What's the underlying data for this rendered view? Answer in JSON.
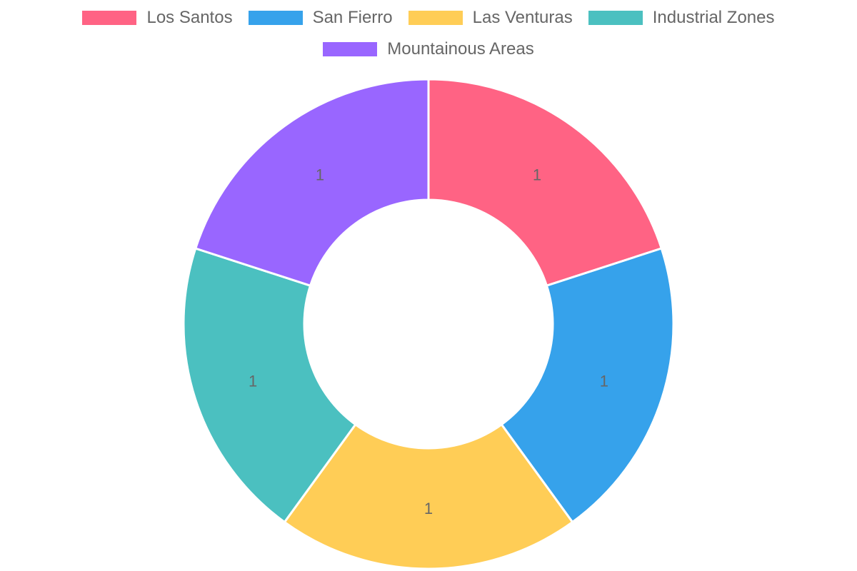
{
  "chart_data": {
    "type": "pie",
    "variant": "doughnut",
    "categories": [
      "Los Santos",
      "San Fierro",
      "Las Venturas",
      "Industrial Zones",
      "Mountainous Areas"
    ],
    "values": [
      1,
      1,
      1,
      1,
      1
    ],
    "data_labels": [
      "1",
      "1",
      "1",
      "1",
      "1"
    ],
    "colors": [
      "#ff6384",
      "#36a2eb",
      "#ffcd56",
      "#4bc0c0",
      "#9966ff"
    ],
    "legend_position": "top",
    "slice_border_color": "#ffffff",
    "label_color": "#666666"
  }
}
